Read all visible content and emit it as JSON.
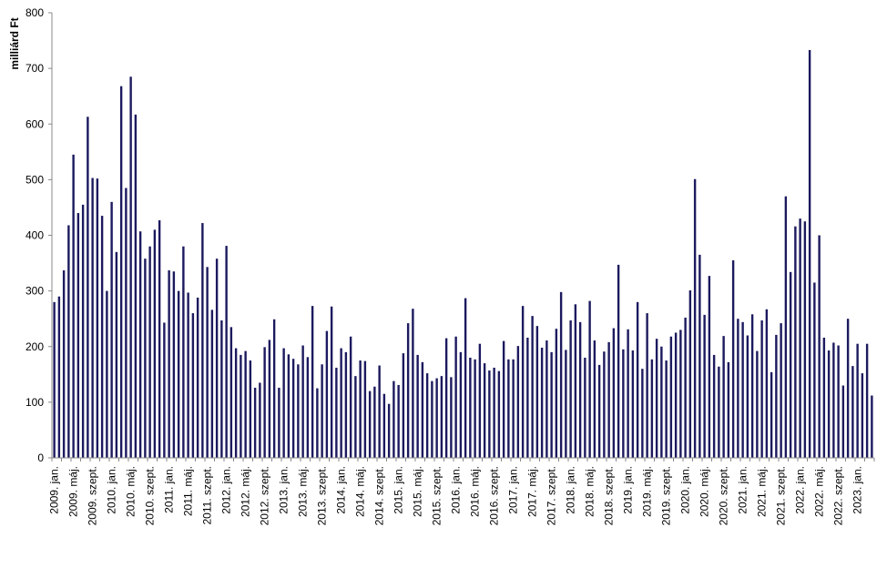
{
  "chart_data": {
    "type": "bar",
    "title": "",
    "xlabel": "",
    "ylabel": "milliárd Ft",
    "ylim": [
      0,
      800
    ],
    "yticks": [
      0,
      100,
      200,
      300,
      400,
      500,
      600,
      700,
      800
    ],
    "grid": false,
    "legend": "none",
    "bar_color": "#1c1a5e",
    "categories": [
      "2009. jan.",
      "2009. febr.",
      "2009. márc.",
      "2009. ápr.",
      "2009. máj.",
      "2009. jún.",
      "2009. júl.",
      "2009. aug.",
      "2009. szept.",
      "2009. okt.",
      "2009. nov.",
      "2009. dec.",
      "2010. jan.",
      "2010. febr.",
      "2010. márc.",
      "2010. ápr.",
      "2010. máj.",
      "2010. jún.",
      "2010. júl.",
      "2010. aug.",
      "2010. szept.",
      "2010. okt.",
      "2010. nov.",
      "2010. dec.",
      "2011. jan.",
      "2011. febr.",
      "2011. márc.",
      "2011. ápr.",
      "2011. máj.",
      "2011. jún.",
      "2011. júl.",
      "2011. aug.",
      "2011. szept.",
      "2011. okt.",
      "2011. nov.",
      "2011. dec.",
      "2012. jan.",
      "2012. febr.",
      "2012. márc.",
      "2012. ápr.",
      "2012. máj.",
      "2012. jún.",
      "2012. júl.",
      "2012. aug.",
      "2012. szept.",
      "2012. okt.",
      "2012. nov.",
      "2012. dec.",
      "2013. jan.",
      "2013. febr.",
      "2013. márc.",
      "2013. ápr.",
      "2013. máj.",
      "2013. jún.",
      "2013. júl.",
      "2013. aug.",
      "2013. szept.",
      "2013. okt.",
      "2013. nov.",
      "2013. dec.",
      "2014. jan.",
      "2014. febr.",
      "2014. márc.",
      "2014. ápr.",
      "2014. máj.",
      "2014. jún.",
      "2014. júl.",
      "2014. aug.",
      "2014. szept.",
      "2014. okt.",
      "2014. nov.",
      "2014. dec.",
      "2015. jan.",
      "2015. febr.",
      "2015. márc.",
      "2015. ápr.",
      "2015. máj.",
      "2015. jún.",
      "2015. júl.",
      "2015. aug.",
      "2015. szept.",
      "2015. okt.",
      "2015. nov.",
      "2015. dec.",
      "2016. jan.",
      "2016. febr.",
      "2016. márc.",
      "2016. ápr.",
      "2016. máj.",
      "2016. jún.",
      "2016. júl.",
      "2016. aug.",
      "2016. szept.",
      "2016. okt.",
      "2016. nov.",
      "2016. dec.",
      "2017. jan.",
      "2017. febr.",
      "2017. márc.",
      "2017. ápr.",
      "2017. máj.",
      "2017. jún.",
      "2017. júl.",
      "2017. aug.",
      "2017. szept.",
      "2017. okt.",
      "2017. nov.",
      "2017. dec.",
      "2018. jan.",
      "2018. febr.",
      "2018. márc.",
      "2018. ápr.",
      "2018. máj.",
      "2018. jún.",
      "2018. júl.",
      "2018. aug.",
      "2018. szept.",
      "2018. okt.",
      "2018. nov.",
      "2018. dec.",
      "2019. jan.",
      "2019. febr.",
      "2019. márc.",
      "2019. ápr.",
      "2019. máj.",
      "2019. jún.",
      "2019. júl.",
      "2019. aug.",
      "2019. szept.",
      "2019. okt.",
      "2019. nov.",
      "2019. dec.",
      "2020. jan.",
      "2020. febr.",
      "2020. márc.",
      "2020. ápr.",
      "2020. máj.",
      "2020. jún.",
      "2020. júl.",
      "2020. aug.",
      "2020. szept.",
      "2020. okt.",
      "2020. nov.",
      "2020. dec.",
      "2021. jan.",
      "2021. febr.",
      "2021. márc.",
      "2021. ápr.",
      "2021. máj.",
      "2021. jún.",
      "2021. júl.",
      "2021. aug.",
      "2021. szept.",
      "2021. okt.",
      "2021. nov.",
      "2021. dec.",
      "2022. jan.",
      "2022. febr.",
      "2022. márc.",
      "2022. ápr.",
      "2022. máj.",
      "2022. jún.",
      "2022. júl.",
      "2022. aug.",
      "2022. szept.",
      "2022. okt.",
      "2022. nov.",
      "2022. dec.",
      "2023. jan.",
      "2023. febr.",
      "2023. márc.",
      "2023. ápr."
    ],
    "values": [
      280,
      290,
      337,
      418,
      545,
      440,
      455,
      613,
      503,
      502,
      435,
      300,
      460,
      370,
      668,
      485,
      685,
      617,
      407,
      358,
      380,
      410,
      427,
      243,
      337,
      335,
      300,
      380,
      297,
      260,
      288,
      422,
      343,
      266,
      358,
      247,
      381,
      235,
      197,
      185,
      192,
      175,
      126,
      135,
      199,
      212,
      249,
      126,
      197,
      186,
      178,
      168,
      202,
      181,
      273,
      125,
      168,
      228,
      272,
      162,
      197,
      190,
      218,
      147,
      175,
      174,
      120,
      128,
      166,
      115,
      97,
      138,
      131,
      188,
      242,
      268,
      185,
      172,
      152,
      138,
      143,
      147,
      215,
      145,
      218,
      190,
      287,
      180,
      177,
      205,
      170,
      157,
      162,
      156,
      210,
      177,
      177,
      201,
      273,
      216,
      255,
      237,
      198,
      211,
      190,
      232,
      298,
      194,
      247,
      276,
      244,
      180,
      282,
      211,
      167,
      191,
      208,
      233,
      347,
      195,
      231,
      193,
      280,
      160,
      260,
      177,
      214,
      200,
      175,
      218,
      225,
      230,
      252,
      301,
      501,
      365,
      257,
      327,
      185,
      164,
      219,
      172,
      355,
      250,
      244,
      220,
      258,
      192,
      247,
      267,
      154,
      221,
      242,
      470,
      334,
      416,
      430,
      425,
      733,
      315,
      400,
      216,
      193,
      207,
      202,
      130,
      250,
      165,
      205,
      152,
      205,
      112
    ],
    "x_tick_labels": [
      {
        "index": 0,
        "label": "2009. jan."
      },
      {
        "index": 4,
        "label": "2009. máj."
      },
      {
        "index": 8,
        "label": "2009. szept."
      },
      {
        "index": 12,
        "label": "2010. jan."
      },
      {
        "index": 16,
        "label": "2010. máj."
      },
      {
        "index": 20,
        "label": "2010. szept."
      },
      {
        "index": 24,
        "label": "2011. jan."
      },
      {
        "index": 28,
        "label": "2011. máj."
      },
      {
        "index": 32,
        "label": "2011. szept."
      },
      {
        "index": 36,
        "label": "2012. jan."
      },
      {
        "index": 40,
        "label": "2012. máj."
      },
      {
        "index": 44,
        "label": "2012. szept."
      },
      {
        "index": 48,
        "label": "2013. jan."
      },
      {
        "index": 52,
        "label": "2013. máj."
      },
      {
        "index": 56,
        "label": "2013. szept."
      },
      {
        "index": 60,
        "label": "2014. jan."
      },
      {
        "index": 64,
        "label": "2014. máj."
      },
      {
        "index": 68,
        "label": "2014. szept."
      },
      {
        "index": 72,
        "label": "2015. jan."
      },
      {
        "index": 76,
        "label": "2015. máj."
      },
      {
        "index": 80,
        "label": "2015. szept."
      },
      {
        "index": 84,
        "label": "2016. jan."
      },
      {
        "index": 88,
        "label": "2016. máj."
      },
      {
        "index": 92,
        "label": "2016. szept."
      },
      {
        "index": 96,
        "label": "2017. jan."
      },
      {
        "index": 100,
        "label": "2017. máj."
      },
      {
        "index": 104,
        "label": "2017. szept."
      },
      {
        "index": 108,
        "label": "2018. jan."
      },
      {
        "index": 112,
        "label": "2018. máj."
      },
      {
        "index": 116,
        "label": "2018. szept."
      },
      {
        "index": 120,
        "label": "2019. jan."
      },
      {
        "index": 124,
        "label": "2019. máj."
      },
      {
        "index": 128,
        "label": "2019. szept."
      },
      {
        "index": 132,
        "label": "2020. jan."
      },
      {
        "index": 136,
        "label": "2020. máj."
      },
      {
        "index": 140,
        "label": "2020. szept."
      },
      {
        "index": 144,
        "label": "2021. jan."
      },
      {
        "index": 148,
        "label": "2021. máj."
      },
      {
        "index": 152,
        "label": "2021. szept."
      },
      {
        "index": 156,
        "label": "2022. jan."
      },
      {
        "index": 160,
        "label": "2022. máj."
      },
      {
        "index": 164,
        "label": "2022. szept."
      },
      {
        "index": 168,
        "label": "2023. jan."
      }
    ]
  }
}
